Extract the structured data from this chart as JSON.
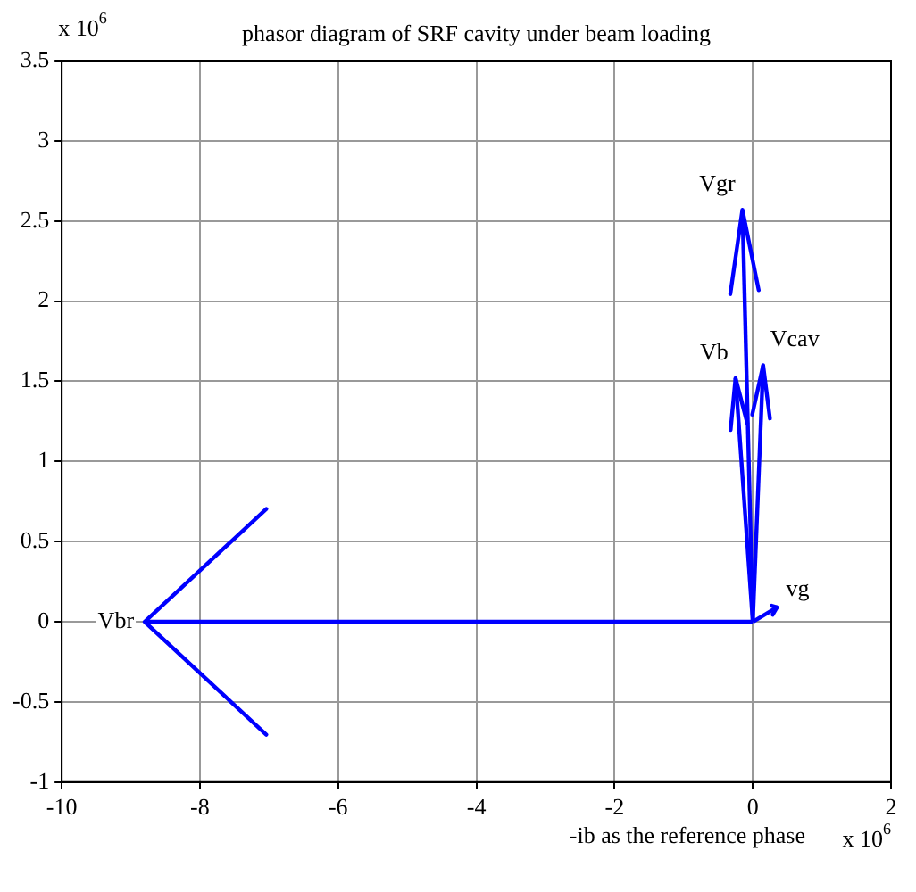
{
  "chart_data": {
    "type": "line",
    "title": "phasor diagram of SRF cavity under beam loading",
    "xlabel": "-ib as the reference phase",
    "annotations": [
      "x 10$^{6}$",
      "x 10$^{6}$"
    ],
    "series": [
      {
        "name": "Vbr",
        "color": "#0000ff",
        "x": [
          0,
          -8.8
        ],
        "values": [
          0,
          0
        ]
      },
      {
        "name": "vg",
        "color": "#0000ff",
        "x": [
          0,
          0.35
        ],
        "values": [
          0,
          0.09
        ]
      },
      {
        "name": "Vb",
        "color": "#0000ff",
        "x": [
          0,
          -0.25
        ],
        "values": [
          0,
          1.52
        ]
      },
      {
        "name": "Vgr",
        "color": "#0000ff",
        "x": [
          0,
          -0.15
        ],
        "values": [
          0,
          2.57
        ]
      },
      {
        "name": "Vcav",
        "color": "#0000ff",
        "x": [
          0,
          0.15
        ],
        "values": [
          0,
          1.6
        ]
      }
    ],
    "xlim": [
      -10,
      2
    ],
    "xticks": [
      -10,
      -8,
      -6,
      -4,
      -2,
      0,
      2
    ],
    "ylim": [
      -1,
      3.5
    ],
    "yticks": [
      -1,
      -0.5,
      0,
      0.5,
      1,
      1.5,
      2,
      2.5,
      3,
      3.5
    ],
    "grid": true,
    "legend": false,
    "line_style": "solid"
  }
}
